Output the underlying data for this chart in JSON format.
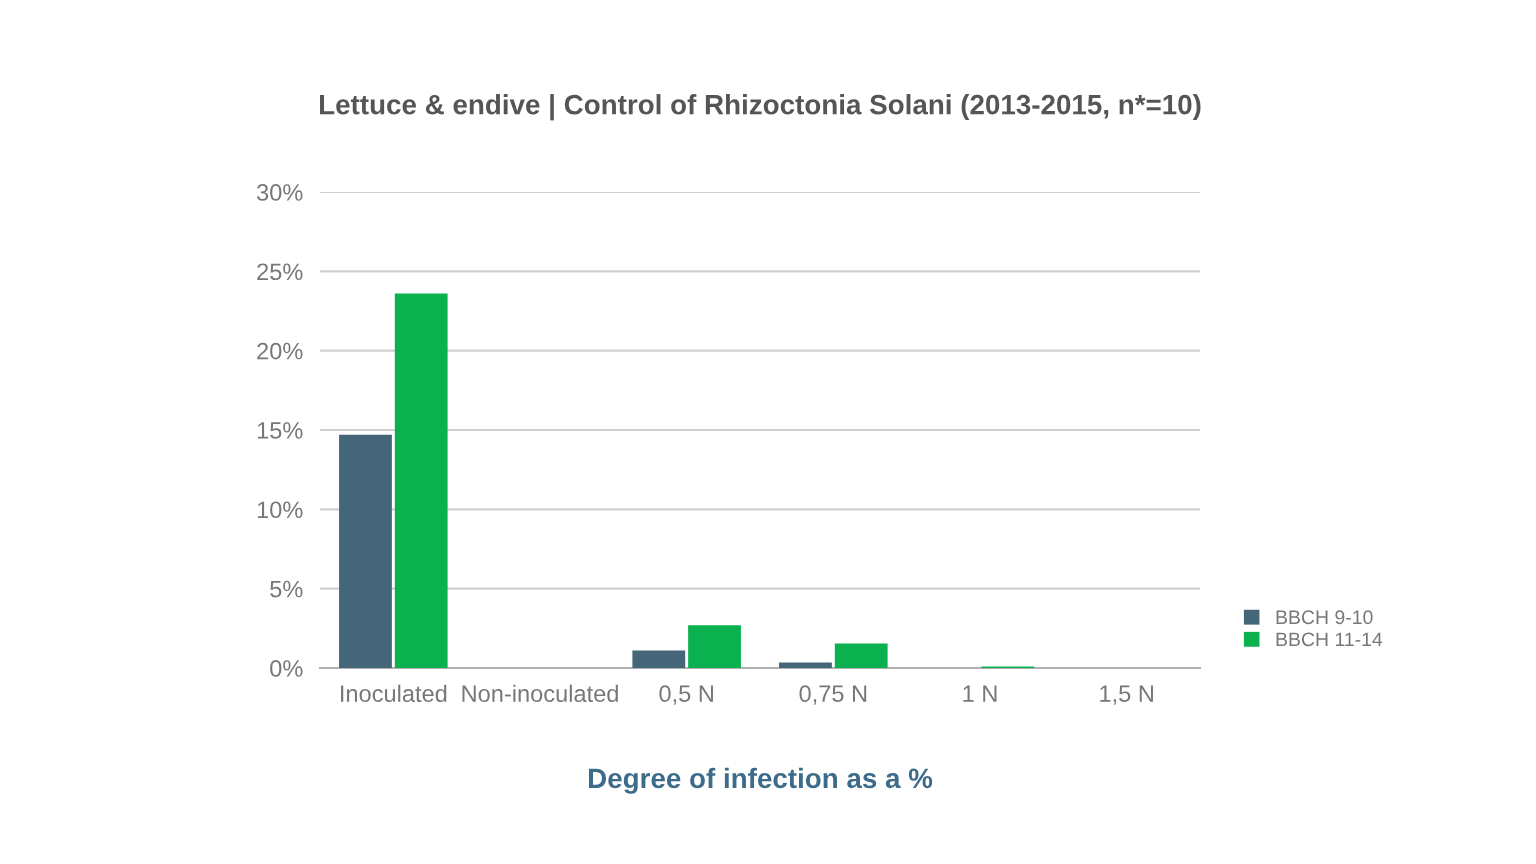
{
  "chart_data": {
    "type": "bar",
    "title": "Lettuce & endive | Control of Rhizoctonia Solani (2013-2015, n*=10)",
    "xlabel": "Degree of infection as a %",
    "categories": [
      "Inoculated",
      "Non-inoculated",
      "0,5 N",
      "0,75 N",
      "1 N",
      "1,5 N"
    ],
    "series": [
      {
        "name": "BBCH 9-10",
        "color": "#456578",
        "values": [
          14.7,
          0,
          1.1,
          0.35,
          0,
          0
        ]
      },
      {
        "name": "BBCH 11-14",
        "color": "#0bb04f",
        "values": [
          23.6,
          0,
          2.7,
          1.55,
          0.1,
          0
        ]
      }
    ],
    "ylim": [
      0,
      30
    ],
    "yticks": [
      {
        "value": 0,
        "label": "0%"
      },
      {
        "value": 5,
        "label": "5%"
      },
      {
        "value": 10,
        "label": "10%"
      },
      {
        "value": 15,
        "label": "15%"
      },
      {
        "value": 20,
        "label": "20%"
      },
      {
        "value": 25,
        "label": "25%"
      },
      {
        "value": 30,
        "label": "30%"
      }
    ],
    "grid": "y",
    "legend": "right"
  }
}
